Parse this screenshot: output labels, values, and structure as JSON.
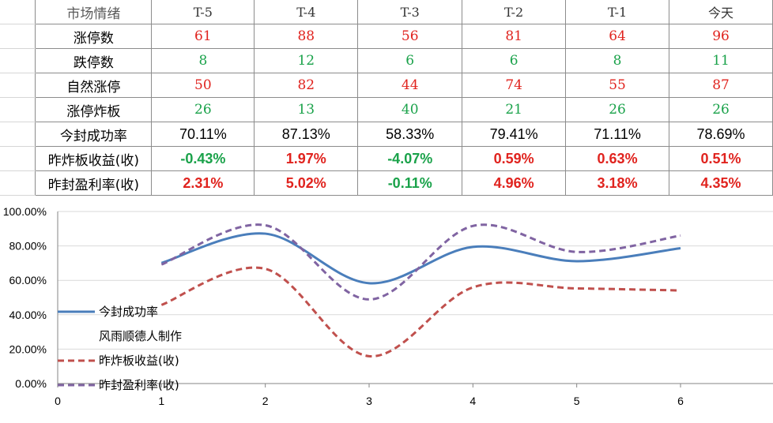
{
  "table": {
    "header": [
      "市场情绪",
      "T-5",
      "T-4",
      "T-3",
      "T-2",
      "T-1",
      "今天"
    ],
    "rows": [
      {
        "label": "涨停数",
        "style": "num-red",
        "values": [
          "61",
          "88",
          "56",
          "81",
          "64",
          "96"
        ]
      },
      {
        "label": "跌停数",
        "style": "num-green",
        "values": [
          "8",
          "12",
          "6",
          "6",
          "8",
          "11"
        ]
      },
      {
        "label": "自然涨停",
        "style": "num-red",
        "values": [
          "50",
          "82",
          "44",
          "74",
          "55",
          "87"
        ]
      },
      {
        "label": "涨停炸板",
        "style": "num-green",
        "values": [
          "26",
          "13",
          "40",
          "21",
          "26",
          "26"
        ]
      },
      {
        "label": "今封成功率",
        "style": "pct",
        "values": [
          "70.11%",
          "87.13%",
          "58.33%",
          "79.41%",
          "71.11%",
          "78.69%"
        ]
      },
      {
        "label": "昨炸板收益(收)",
        "style": "pct",
        "values": [
          "-0.43%",
          "1.97%",
          "-4.07%",
          "0.59%",
          "0.63%",
          "0.51%"
        ]
      },
      {
        "label": "昨封盈利率(收)",
        "style": "pct",
        "values": [
          "2.31%",
          "5.02%",
          "-0.11%",
          "4.96%",
          "3.18%",
          "4.35%"
        ]
      }
    ]
  },
  "colors": {
    "red": "#e0231e",
    "green": "#1aa24a",
    "series_blue": "#4a7ebb",
    "series_red": "#c0504d",
    "series_purple": "#8064a2"
  },
  "chart_data": {
    "type": "line",
    "smooth": true,
    "x_ticks": [
      "0",
      "1",
      "2",
      "3",
      "4",
      "5",
      "6"
    ],
    "xlim": [
      0,
      6
    ],
    "y_ticks": [
      "0.00%",
      "20.00%",
      "40.00%",
      "60.00%",
      "80.00%",
      "100.00%"
    ],
    "ylim": [
      0,
      100
    ],
    "grid": "horizontal",
    "legend": "left",
    "legend_items": [
      "今封成功率",
      "风雨顺德人制作",
      "昨炸板收益(收)",
      "昨封盈利率(收)"
    ],
    "series": [
      {
        "name": "今封成功率",
        "color": "#4a7ebb",
        "dash": "solid",
        "x": [
          1,
          2,
          3,
          4,
          5,
          6
        ],
        "values": [
          70.11,
          87.13,
          58.33,
          79.41,
          71.11,
          78.69
        ]
      },
      {
        "name": "昨炸板收益(收)",
        "color": "#c0504d",
        "dash": "dash",
        "x": [
          1,
          2,
          3,
          4,
          5,
          6
        ],
        "values": [
          45.7,
          66.7,
          15.9,
          55.9,
          55.3,
          54.1
        ]
      },
      {
        "name": "昨封盈利率(收)",
        "color": "#8064a2",
        "dash": "dash",
        "x": [
          1,
          2,
          3,
          4,
          5,
          6
        ],
        "values": [
          69.2,
          92.0,
          48.9,
          91.6,
          76.5,
          86.0
        ]
      }
    ]
  }
}
